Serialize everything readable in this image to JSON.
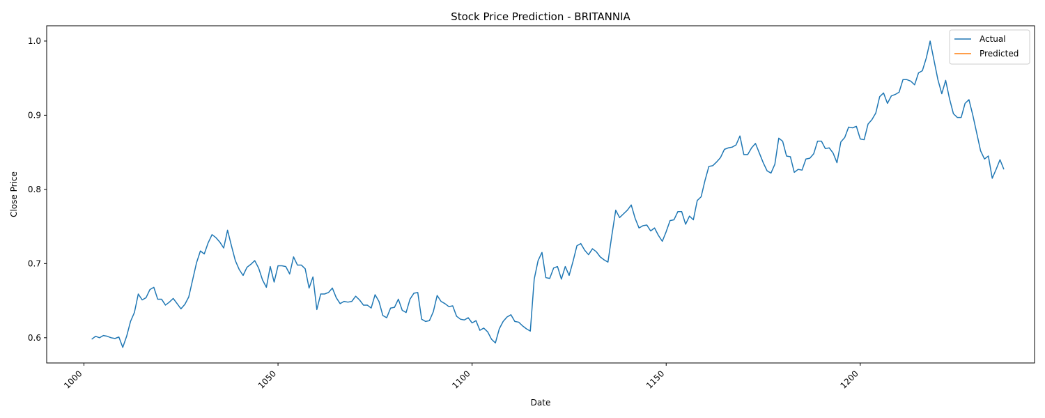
{
  "chart_data": {
    "type": "line",
    "title": "Stock Price Prediction - BRITANNIA",
    "xlabel": "Date",
    "ylabel": "Close Price",
    "xlim": [
      990.4,
      1244.9
    ],
    "ylim": [
      0.566,
      1.0206
    ],
    "xticks": [
      1000,
      1050,
      1100,
      1150,
      1200
    ],
    "yticks": [
      0.6,
      0.7,
      0.8,
      0.9,
      1.0
    ],
    "ytick_labels": [
      "0.6",
      "0.7",
      "0.8",
      "0.9",
      "1.0"
    ],
    "grid": false,
    "legend_position": "top-right",
    "series": [
      {
        "name": "Actual",
        "color": "#1f77b4",
        "x_start": 1002,
        "values": [
          0.598,
          0.602,
          0.6,
          0.603,
          0.602,
          0.6,
          0.599,
          0.601,
          0.587,
          0.602,
          0.622,
          0.634,
          0.659,
          0.651,
          0.654,
          0.665,
          0.668,
          0.652,
          0.652,
          0.644,
          0.648,
          0.653,
          0.646,
          0.639,
          0.645,
          0.655,
          0.678,
          0.701,
          0.717,
          0.713,
          0.728,
          0.739,
          0.735,
          0.729,
          0.721,
          0.745,
          0.724,
          0.704,
          0.692,
          0.684,
          0.695,
          0.699,
          0.704,
          0.694,
          0.678,
          0.668,
          0.696,
          0.675,
          0.697,
          0.697,
          0.696,
          0.686,
          0.709,
          0.698,
          0.698,
          0.693,
          0.667,
          0.682,
          0.638,
          0.659,
          0.659,
          0.661,
          0.667,
          0.654,
          0.646,
          0.649,
          0.648,
          0.649,
          0.656,
          0.651,
          0.644,
          0.644,
          0.64,
          0.658,
          0.649,
          0.63,
          0.627,
          0.64,
          0.641,
          0.652,
          0.637,
          0.634,
          0.652,
          0.66,
          0.661,
          0.625,
          0.622,
          0.623,
          0.635,
          0.657,
          0.649,
          0.646,
          0.642,
          0.643,
          0.629,
          0.625,
          0.624,
          0.627,
          0.62,
          0.623,
          0.61,
          0.613,
          0.608,
          0.598,
          0.593,
          0.612,
          0.622,
          0.628,
          0.631,
          0.622,
          0.621,
          0.616,
          0.612,
          0.609,
          0.679,
          0.704,
          0.715,
          0.681,
          0.68,
          0.694,
          0.696,
          0.679,
          0.696,
          0.684,
          0.703,
          0.724,
          0.727,
          0.718,
          0.712,
          0.72,
          0.716,
          0.709,
          0.705,
          0.702,
          0.738,
          0.772,
          0.762,
          0.767,
          0.772,
          0.779,
          0.761,
          0.748,
          0.751,
          0.752,
          0.744,
          0.748,
          0.738,
          0.73,
          0.743,
          0.758,
          0.759,
          0.77,
          0.77,
          0.753,
          0.764,
          0.759,
          0.785,
          0.79,
          0.812,
          0.831,
          0.832,
          0.837,
          0.843,
          0.854,
          0.856,
          0.857,
          0.86,
          0.872,
          0.847,
          0.847,
          0.856,
          0.862,
          0.849,
          0.836,
          0.825,
          0.822,
          0.834,
          0.869,
          0.865,
          0.845,
          0.844,
          0.823,
          0.827,
          0.826,
          0.841,
          0.842,
          0.848,
          0.865,
          0.865,
          0.855,
          0.856,
          0.849,
          0.836,
          0.864,
          0.87,
          0.884,
          0.883,
          0.885,
          0.868,
          0.867,
          0.888,
          0.894,
          0.903,
          0.925,
          0.93,
          0.916,
          0.926,
          0.928,
          0.931,
          0.948,
          0.948,
          0.946,
          0.941,
          0.957,
          0.96,
          0.977,
          1.0,
          0.974,
          0.948,
          0.929,
          0.947,
          0.922,
          0.902,
          0.897,
          0.897,
          0.916,
          0.921,
          0.9,
          0.876,
          0.852,
          0.841,
          0.845,
          0.815,
          0.827,
          0.84,
          0.827
        ]
      },
      {
        "name": "Predicted",
        "color": "#ff7f0e",
        "values": []
      }
    ]
  }
}
